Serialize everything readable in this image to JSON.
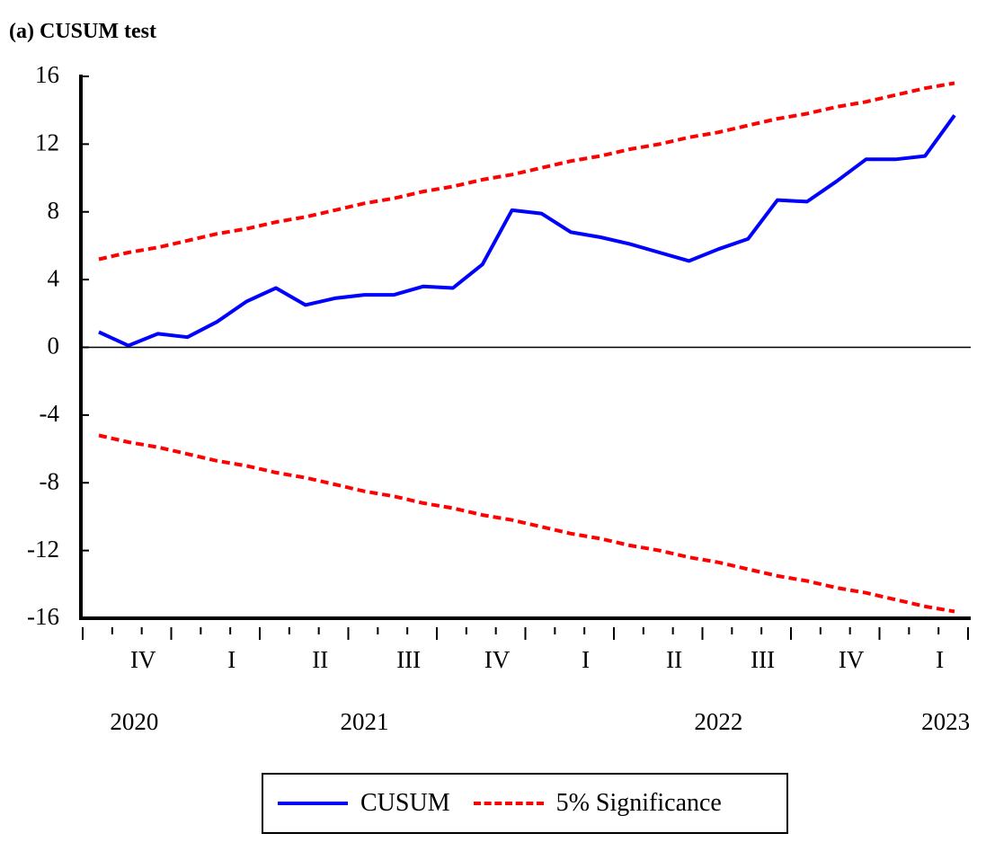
{
  "chart_data": {
    "type": "line",
    "title": "(a) CUSUM test",
    "ylim": [
      -16,
      16
    ],
    "yticks": [
      16,
      12,
      8,
      4,
      0,
      -4,
      -8,
      -12,
      -16
    ],
    "ytick_labels": [
      "16",
      "12",
      "8",
      "4",
      "0",
      "-4",
      "-8",
      "-12",
      "-16"
    ],
    "quarter_labels": [
      {
        "label": "IV",
        "index": 1.5
      },
      {
        "label": "I",
        "index": 4.5
      },
      {
        "label": "II",
        "index": 7.5
      },
      {
        "label": "III",
        "index": 10.5
      },
      {
        "label": "IV",
        "index": 13.5
      },
      {
        "label": "I",
        "index": 16.5
      },
      {
        "label": "II",
        "index": 19.5
      },
      {
        "label": "III",
        "index": 22.5
      },
      {
        "label": "IV",
        "index": 25.5
      },
      {
        "label": "I",
        "index": 28.5
      }
    ],
    "year_labels": [
      {
        "label": "2020",
        "index": 1.2
      },
      {
        "label": "2021",
        "index": 9
      },
      {
        "label": "2022",
        "index": 21
      },
      {
        "label": "2023",
        "index": 28.7
      }
    ],
    "series": [
      {
        "name": "CUSUM",
        "color": "#0000ff",
        "style": "solid",
        "values": [
          0.9,
          0.1,
          0.8,
          0.6,
          1.5,
          2.7,
          3.5,
          2.5,
          2.9,
          3.1,
          3.1,
          3.6,
          3.5,
          4.9,
          8.1,
          7.9,
          6.8,
          6.5,
          6.1,
          5.6,
          5.1,
          5.8,
          6.4,
          8.7,
          8.6,
          9.8,
          11.1,
          11.1,
          11.3,
          13.7
        ]
      },
      {
        "name": "5% Significance",
        "color": "#ff0000",
        "style": "dashed",
        "values": [
          5.2,
          5.6,
          5.9,
          6.3,
          6.7,
          7.0,
          7.4,
          7.7,
          8.1,
          8.5,
          8.8,
          9.2,
          9.5,
          9.9,
          10.2,
          10.6,
          11.0,
          11.3,
          11.7,
          12.0,
          12.4,
          12.7,
          13.1,
          13.5,
          13.8,
          14.2,
          14.5,
          14.9,
          15.3,
          15.6
        ]
      },
      {
        "name": "5% Significance (lower)",
        "color": "#ff0000",
        "style": "dashed",
        "values": [
          -5.2,
          -5.6,
          -5.9,
          -6.3,
          -6.7,
          -7.0,
          -7.4,
          -7.7,
          -8.1,
          -8.5,
          -8.8,
          -9.2,
          -9.5,
          -9.9,
          -10.2,
          -10.6,
          -11.0,
          -11.3,
          -11.7,
          -12.0,
          -12.4,
          -12.7,
          -13.1,
          -13.5,
          -13.8,
          -14.2,
          -14.5,
          -14.9,
          -15.3,
          -15.6
        ]
      }
    ]
  },
  "legend": {
    "cusum_label": "CUSUM",
    "significance_label": "5% Significance",
    "cusum_color": "#0000ff",
    "significance_color": "#ff0000"
  }
}
